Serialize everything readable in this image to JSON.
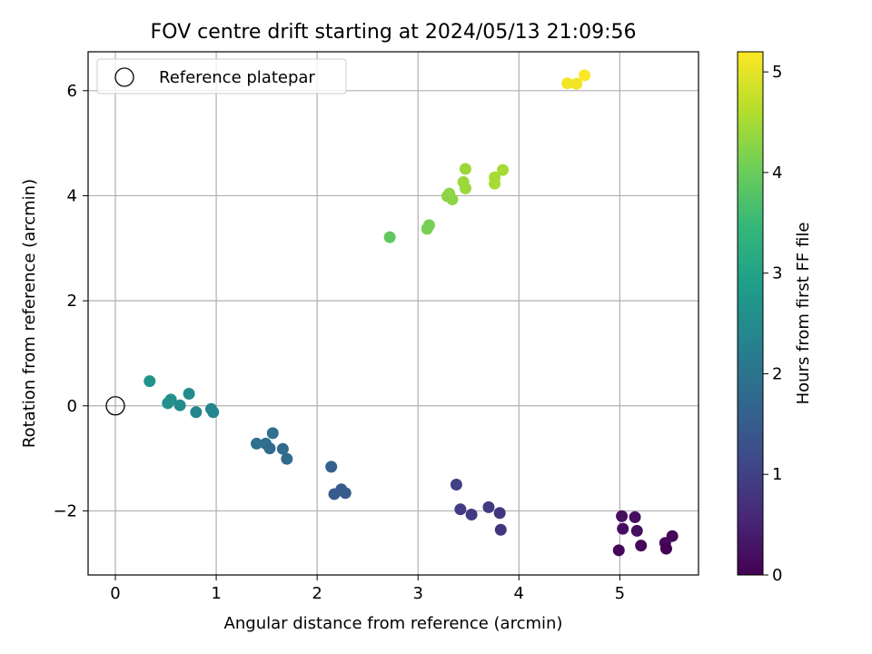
{
  "chart_data": {
    "type": "scatter",
    "title": "FOV centre drift starting at 2024/05/13 21:09:56",
    "xlabel": "Angular distance from reference (arcmin)",
    "ylabel": "Rotation from reference (arcmin)",
    "colorbar_label": "Hours from first FF file",
    "xlim": [
      -0.27,
      5.78
    ],
    "ylim": [
      -3.22,
      6.74
    ],
    "x_ticks": [
      0,
      1,
      2,
      3,
      4,
      5
    ],
    "y_ticks": [
      -2,
      0,
      2,
      4,
      6
    ],
    "y_tick_labels": [
      "−2",
      "0",
      "2",
      "4",
      "6"
    ],
    "colorbar_range": [
      0,
      5.2
    ],
    "colorbar_ticks": [
      0,
      1,
      2,
      3,
      4,
      5
    ],
    "colormap": "viridis",
    "grid": true,
    "legend": {
      "position": "top-left",
      "entries": [
        {
          "label": "Reference platepar",
          "marker": "open-circle",
          "x": 0,
          "y": 0
        }
      ]
    },
    "points": [
      {
        "x": 4.48,
        "y": 6.14,
        "c": 5.1
      },
      {
        "x": 4.57,
        "y": 6.13,
        "c": 5.1
      },
      {
        "x": 4.65,
        "y": 6.29,
        "c": 5.2
      },
      {
        "x": 3.84,
        "y": 4.49,
        "c": 4.5
      },
      {
        "x": 3.76,
        "y": 4.35,
        "c": 4.5
      },
      {
        "x": 3.76,
        "y": 4.23,
        "c": 4.5
      },
      {
        "x": 3.47,
        "y": 4.51,
        "c": 4.4
      },
      {
        "x": 3.45,
        "y": 4.26,
        "c": 4.4
      },
      {
        "x": 3.47,
        "y": 4.14,
        "c": 4.4
      },
      {
        "x": 3.31,
        "y": 4.04,
        "c": 4.3
      },
      {
        "x": 3.29,
        "y": 3.99,
        "c": 4.3
      },
      {
        "x": 3.34,
        "y": 3.93,
        "c": 4.3
      },
      {
        "x": 3.11,
        "y": 3.44,
        "c": 4.1
      },
      {
        "x": 3.09,
        "y": 3.37,
        "c": 4.1
      },
      {
        "x": 2.72,
        "y": 3.21,
        "c": 3.9
      },
      {
        "x": 0.34,
        "y": 0.47,
        "c": 2.7
      },
      {
        "x": 0.73,
        "y": 0.23,
        "c": 2.5
      },
      {
        "x": 0.55,
        "y": 0.12,
        "c": 2.6
      },
      {
        "x": 0.52,
        "y": 0.05,
        "c": 2.6
      },
      {
        "x": 0.64,
        "y": 0.01,
        "c": 2.5
      },
      {
        "x": 0.95,
        "y": -0.06,
        "c": 2.4
      },
      {
        "x": 0.97,
        "y": -0.12,
        "c": 2.4
      },
      {
        "x": 0.8,
        "y": -0.12,
        "c": 2.4
      },
      {
        "x": 1.56,
        "y": -0.52,
        "c": 1.9
      },
      {
        "x": 1.4,
        "y": -0.72,
        "c": 1.9
      },
      {
        "x": 1.49,
        "y": -0.72,
        "c": 1.9
      },
      {
        "x": 1.53,
        "y": -0.81,
        "c": 1.8
      },
      {
        "x": 1.66,
        "y": -0.82,
        "c": 1.8
      },
      {
        "x": 1.7,
        "y": -1.01,
        "c": 1.8
      },
      {
        "x": 2.14,
        "y": -1.16,
        "c": 1.6
      },
      {
        "x": 2.17,
        "y": -1.68,
        "c": 1.5
      },
      {
        "x": 2.24,
        "y": -1.59,
        "c": 1.5
      },
      {
        "x": 2.28,
        "y": -1.66,
        "c": 1.5
      },
      {
        "x": 3.38,
        "y": -1.5,
        "c": 1.0
      },
      {
        "x": 3.42,
        "y": -1.97,
        "c": 0.9
      },
      {
        "x": 3.53,
        "y": -2.07,
        "c": 0.9
      },
      {
        "x": 3.7,
        "y": -1.93,
        "c": 0.9
      },
      {
        "x": 3.81,
        "y": -2.04,
        "c": 0.8
      },
      {
        "x": 3.82,
        "y": -2.36,
        "c": 0.8
      },
      {
        "x": 5.02,
        "y": -2.1,
        "c": 0.2
      },
      {
        "x": 5.15,
        "y": -2.12,
        "c": 0.2
      },
      {
        "x": 5.03,
        "y": -2.34,
        "c": 0.2
      },
      {
        "x": 5.17,
        "y": -2.38,
        "c": 0.2
      },
      {
        "x": 5.21,
        "y": -2.66,
        "c": 0.1
      },
      {
        "x": 5.45,
        "y": -2.61,
        "c": 0.1
      },
      {
        "x": 5.46,
        "y": -2.72,
        "c": 0.0
      },
      {
        "x": 5.52,
        "y": -2.48,
        "c": 0.1
      },
      {
        "x": 4.99,
        "y": -2.75,
        "c": 0.1
      }
    ]
  }
}
